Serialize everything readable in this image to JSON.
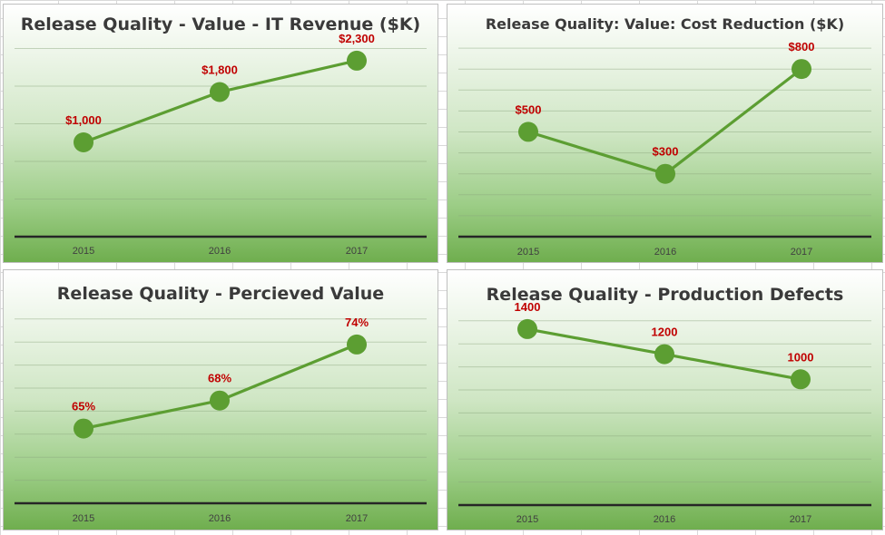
{
  "chart_data": [
    {
      "type": "line",
      "title": "Release Quality - Value - IT Revenue ($K)",
      "categories": [
        "2015",
        "2016",
        "2017"
      ],
      "values": [
        1000,
        1800,
        2300
      ],
      "data_labels": [
        "$1,000",
        "$1,800",
        "$2,300"
      ],
      "ylim": [
        -500,
        2500
      ],
      "grid": true,
      "legend": "none"
    },
    {
      "type": "line",
      "title": "Release Quality: Value: Cost Reduction ($K)",
      "categories": [
        "2015",
        "2016",
        "2017"
      ],
      "values": [
        500,
        300,
        800
      ],
      "data_labels": [
        "$500",
        "$300",
        "$800"
      ],
      "ylim": [
        0,
        900
      ],
      "grid": true,
      "legend": "none"
    },
    {
      "type": "line",
      "title": "Release Quality - Percieved Value",
      "categories": [
        "2015",
        "2016",
        "2017"
      ],
      "values": [
        65,
        68,
        74
      ],
      "data_labels": [
        "65%",
        "68%",
        "74%"
      ],
      "ylim": [
        57,
        77
      ],
      "grid": true,
      "legend": "none"
    },
    {
      "type": "line",
      "title": "Release Quality - Production Defects",
      "categories": [
        "2015",
        "2016",
        "2017"
      ],
      "values": [
        1400,
        1200,
        1000
      ],
      "data_labels": [
        "1400",
        "1200",
        "1000"
      ],
      "ylim": [
        0,
        1500
      ],
      "grid": true,
      "legend": "none"
    }
  ],
  "colors": {
    "line": "#5c9e32",
    "marker": "#5c9e32",
    "data_label": "#c00000",
    "axis": "#262626",
    "title": "#3a3a3a"
  }
}
